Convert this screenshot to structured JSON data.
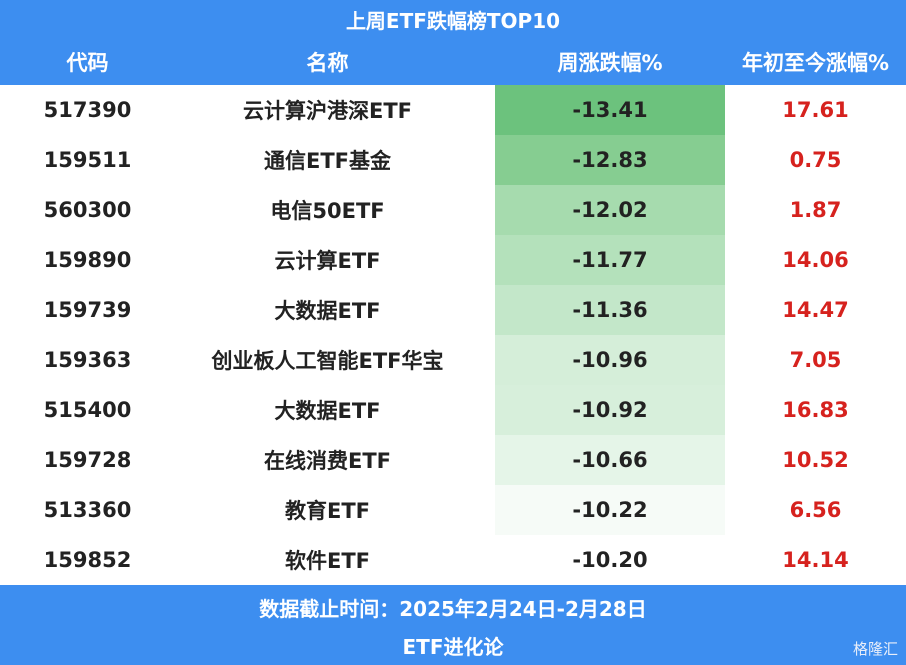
{
  "header": {
    "title": "上周ETF跌幅榜TOP10",
    "columns": [
      "代码",
      "名称",
      "周涨跌幅%",
      "年初至今涨幅%"
    ]
  },
  "table": {
    "rows": [
      [
        "517390",
        "云计算沪港深ETF",
        "-13.41",
        "17.61"
      ],
      [
        "159511",
        "通信ETF基金",
        "-12.83",
        "0.75"
      ],
      [
        "560300",
        "电信50ETF",
        "-12.02",
        "1.87"
      ],
      [
        "159890",
        "云计算ETF",
        "-11.77",
        "14.06"
      ],
      [
        "159739",
        "大数据ETF",
        "-11.36",
        "14.47"
      ],
      [
        "159363",
        "创业板人工智能ETF华宝",
        "-10.96",
        "7.05"
      ],
      [
        "515400",
        "大数据ETF",
        "-10.92",
        "16.83"
      ],
      [
        "159728",
        "在线消费ETF",
        "-10.66",
        "10.52"
      ],
      [
        "513360",
        "教育ETF",
        "-10.22",
        "6.56"
      ],
      [
        "159852",
        "软件ETF",
        "-10.20",
        "14.14"
      ]
    ],
    "change_colors": [
      "#6cc27d",
      "#86cd91",
      "#a6dbae",
      "#b4e1bb",
      "#c3e7c9",
      "#d5eed9",
      "#d7efdb",
      "#e5f5e8",
      "#f6fbf7",
      "#ffffff"
    ]
  },
  "footer": {
    "date": "数据截止时间：2025年2月24日-2月28日",
    "source": "ETF进化论"
  },
  "watermark": "格隆汇"
}
